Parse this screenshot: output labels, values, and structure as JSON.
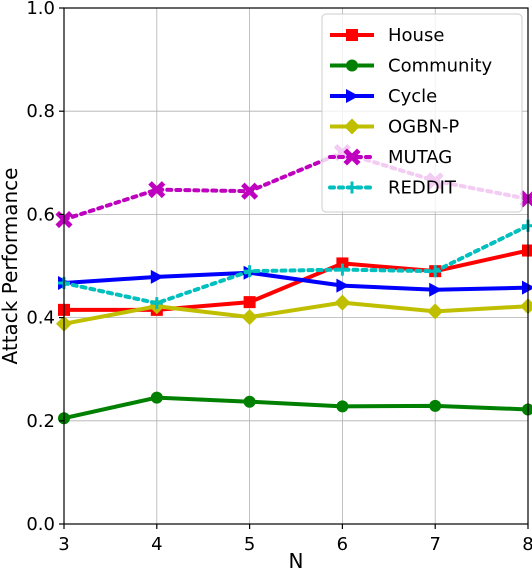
{
  "chart_data": {
    "type": "line",
    "title": "",
    "xlabel": "N",
    "ylabel": "Attack Performance",
    "x": [
      3,
      4,
      5,
      6,
      7,
      8
    ],
    "xlim": [
      3,
      8
    ],
    "ylim": [
      0.0,
      1.0
    ],
    "xticks": [
      "3",
      "4",
      "5",
      "6",
      "7",
      "8"
    ],
    "yticks": [
      "0.0",
      "0.2",
      "0.4",
      "0.6",
      "0.8",
      "1.0"
    ],
    "grid": true,
    "legend_position": "top-right",
    "series": [
      {
        "name": "House",
        "color": "#ff0000",
        "marker": "square",
        "dash": "solid",
        "values": [
          0.415,
          0.415,
          0.43,
          0.505,
          0.49,
          0.53
        ]
      },
      {
        "name": "Community",
        "color": "#008000",
        "marker": "circle",
        "dash": "solid",
        "values": [
          0.205,
          0.245,
          0.237,
          0.228,
          0.229,
          0.222
        ]
      },
      {
        "name": "Cycle",
        "color": "#0000ff",
        "marker": "triangle-right",
        "dash": "solid",
        "values": [
          0.467,
          0.479,
          0.487,
          0.462,
          0.454,
          0.458
        ]
      },
      {
        "name": "OGBN-P",
        "color": "#bfbf00",
        "marker": "diamond",
        "dash": "solid",
        "values": [
          0.388,
          0.422,
          0.401,
          0.429,
          0.412,
          0.422
        ]
      },
      {
        "name": "MUTAG",
        "color": "#bf00bf",
        "marker": "x-filled",
        "dash": "dotted",
        "values": [
          0.59,
          0.648,
          0.645,
          0.72,
          0.665,
          0.63
        ]
      },
      {
        "name": "REDDIT",
        "color": "#00bfbf",
        "marker": "plus",
        "dash": "dotted",
        "values": [
          0.467,
          0.428,
          0.49,
          0.493,
          0.49,
          0.578
        ]
      }
    ]
  }
}
